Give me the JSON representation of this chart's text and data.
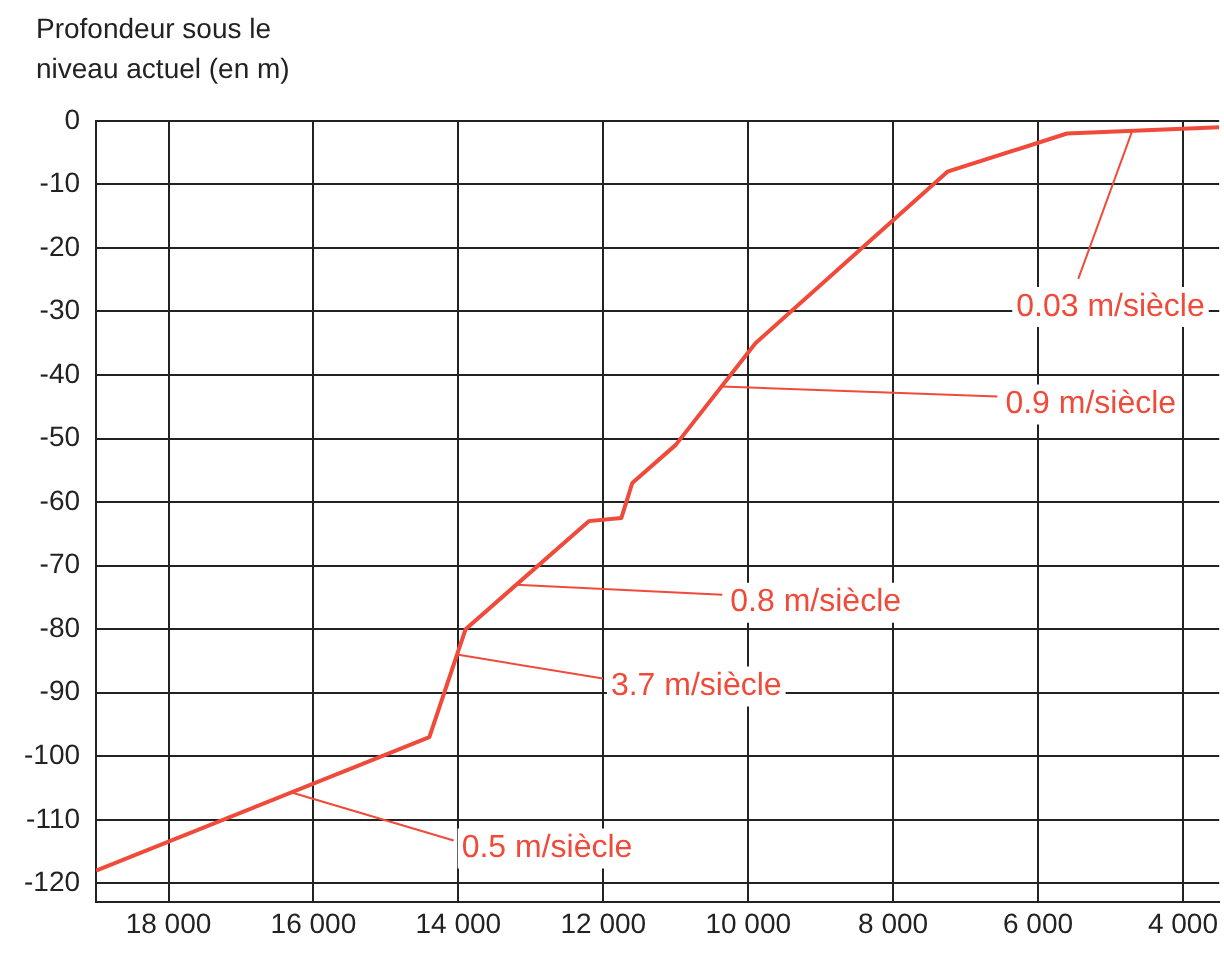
{
  "chart_data": {
    "type": "line",
    "ylabel": "Profondeur sous le niveau actuel (en m)",
    "x": [
      19000,
      14400,
      13900,
      12200,
      11750,
      11600,
      11000,
      9900,
      7250,
      5600,
      3500
    ],
    "series": [
      {
        "color": "#f04a3a",
        "values": [
          -118,
          -97,
          -80,
          -63,
          -62.5,
          -57,
          -51,
          -35,
          -8,
          -2,
          -1
        ]
      }
    ],
    "xlim": [
      19000,
      3500
    ],
    "xticks": [
      {
        "value": 18000,
        "label": "18 000"
      },
      {
        "value": 16000,
        "label": "16 000"
      },
      {
        "value": 14000,
        "label": "14 000"
      },
      {
        "value": 12000,
        "label": "12 000"
      },
      {
        "value": 10000,
        "label": "10 000"
      },
      {
        "value": 8000,
        "label": "8 000"
      },
      {
        "value": 6000,
        "label": "6 000"
      },
      {
        "value": 4000,
        "label": "4 000"
      }
    ],
    "ylim": [
      -123,
      0
    ],
    "yticks": [
      0,
      -10,
      -20,
      -30,
      -40,
      -50,
      -60,
      -70,
      -80,
      -90,
      -100,
      -110,
      -120
    ],
    "grid": true,
    "marker": "none",
    "line_style": "solid",
    "legend": false,
    "annotations": [
      {
        "text": "0.03 m/siècle",
        "x": 4700,
        "y": -1.6
      },
      {
        "text": "0.9 m/siècle",
        "x": 10370,
        "y": -41.8
      },
      {
        "text": "0.8 m/siècle",
        "x": 13200,
        "y": -73
      },
      {
        "text": "3.7 m/siècle",
        "x": 14020,
        "y": -84
      },
      {
        "text": "0.5 m/siècle",
        "x": 16300,
        "y": -105.7
      }
    ]
  }
}
